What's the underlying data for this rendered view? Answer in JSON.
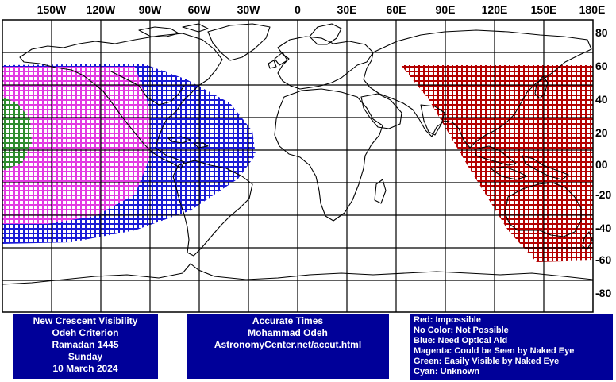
{
  "map": {
    "lon_labels": [
      "150W",
      "120W",
      "90W",
      "60W",
      "30W",
      "0",
      "30E",
      "60E",
      "90E",
      "120E",
      "150E",
      "180E"
    ],
    "lat_labels": [
      "80",
      "60",
      "40",
      "20",
      "00",
      "-20",
      "-40",
      "-60",
      "-80"
    ],
    "lon_range": [
      -180,
      180
    ],
    "lat_range": [
      -90,
      90
    ],
    "grid": true,
    "colors": {
      "impossible": "#b40000",
      "optical_aid": "#1a1ad6",
      "naked_eye_maybe": "#e23ae2",
      "easily_visible": "#2e8b2e",
      "coastline": "#000000",
      "grid": "#000000"
    }
  },
  "info_left": {
    "lines": [
      "New Crescent Visibility",
      "Odeh Criterion",
      "Ramadan 1445",
      "Sunday",
      "10 March 2024"
    ]
  },
  "info_center": {
    "lines": [
      "Accurate Times",
      "Mohammad Odeh",
      "AstronomyCenter.net/accut.html"
    ]
  },
  "legend": {
    "items": [
      "Red: Impossible",
      "No Color: Not Possible",
      "Blue: Need Optical Aid",
      "Magenta: Could be Seen by Naked Eye",
      "Green: Easily Visible by Naked Eye",
      "Cyan: Unknown"
    ]
  }
}
